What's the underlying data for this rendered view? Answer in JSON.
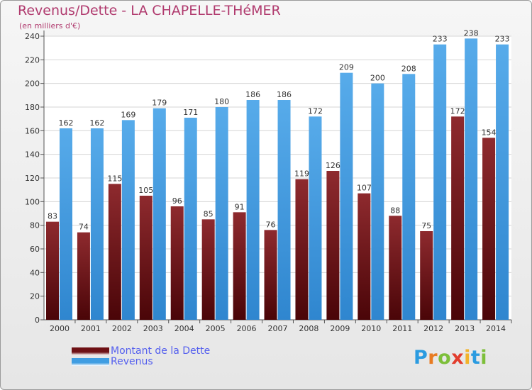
{
  "header": {
    "title": "Revenus/Dette - LA CHAPELLE-THéMER",
    "subtitle": "(en milliers d'€)"
  },
  "chart_data": {
    "type": "bar",
    "categories": [
      "2000",
      "2001",
      "2002",
      "2003",
      "2004",
      "2005",
      "2006",
      "2007",
      "2008",
      "2009",
      "2010",
      "2011",
      "2012",
      "2013",
      "2014"
    ],
    "series": [
      {
        "name": "Montant de la Dette",
        "values": [
          83,
          74,
          115,
          105,
          96,
          85,
          91,
          76,
          119,
          126,
          107,
          88,
          75,
          172,
          154
        ],
        "color": "#7a1a1d"
      },
      {
        "name": "Revenus",
        "values": [
          162,
          162,
          169,
          179,
          171,
          180,
          186,
          186,
          172,
          209,
          200,
          208,
          233,
          238,
          233
        ],
        "color": "#4aa3e4"
      }
    ],
    "ylim": [
      0,
      240
    ],
    "yticks": [
      0,
      20,
      40,
      60,
      80,
      100,
      120,
      140,
      160,
      180,
      200,
      220,
      240
    ],
    "grid": true,
    "legend_position": "bottom-left"
  },
  "legend": [
    {
      "label": "Montant de la Dette",
      "color": "#6e1014"
    },
    {
      "label": "Revenus",
      "color": "#3f9de2"
    }
  ],
  "logo": {
    "text": "Proxiti",
    "letters": [
      "P",
      "r",
      "o",
      "x",
      "i",
      "t",
      "i"
    ],
    "colors": [
      "#2b9be0",
      "#e87b22",
      "#7dbf3a",
      "#e23d2d",
      "#f2b32a",
      "#2b9be0",
      "#7dbf3a"
    ]
  }
}
